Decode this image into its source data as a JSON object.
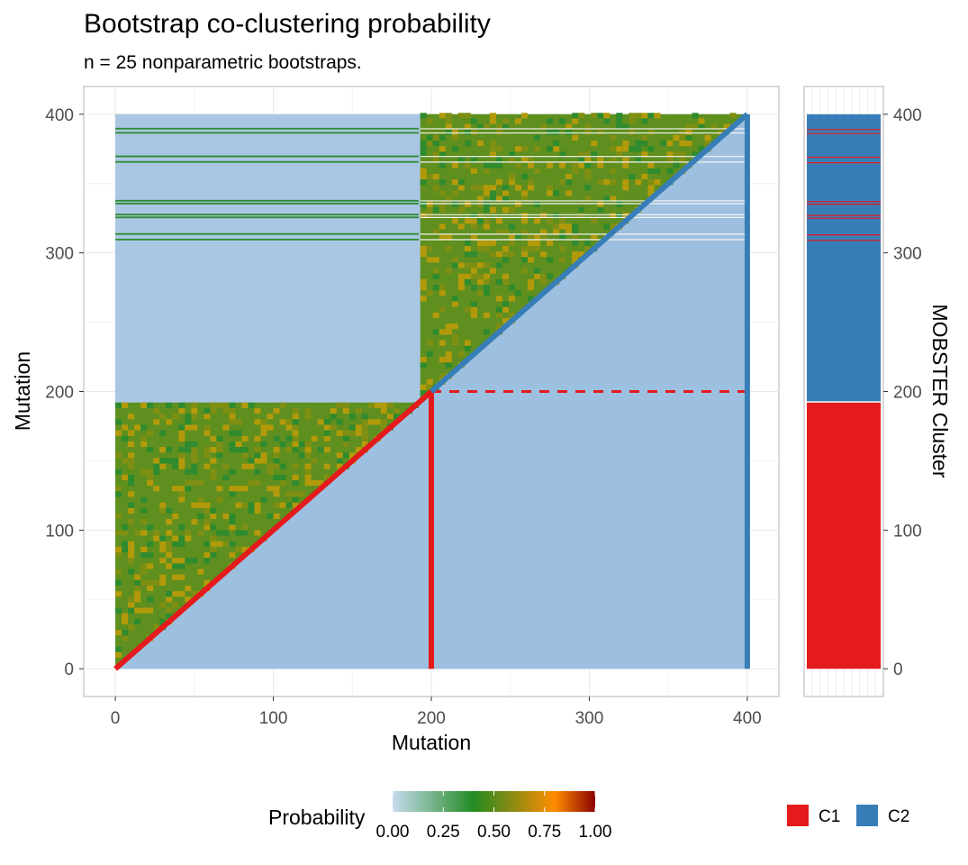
{
  "title": "Bootstrap co-clustering probability",
  "subtitle": "n = 25 nonparametric bootstraps.",
  "chart_data": [
    {
      "type": "heatmap",
      "title": "Bootstrap co-clustering probability",
      "subtitle": "n = 25 nonparametric bootstraps.",
      "xlabel": "Mutation",
      "ylabel": "Mutation",
      "xlim": [
        -20,
        420
      ],
      "ylim": [
        -20,
        420
      ],
      "x_ticks": [
        0,
        100,
        200,
        300,
        400
      ],
      "y_ticks": [
        0,
        100,
        200,
        300,
        400
      ],
      "x_tick_labels": [
        "0",
        "100",
        "200",
        "300",
        "400"
      ],
      "y_tick_labels": [
        "0",
        "100",
        "200",
        "300",
        "400"
      ],
      "grid": true,
      "n_mutations": 400,
      "blocks": [
        {
          "cluster": "C1",
          "from": 0,
          "to": 192,
          "mean_probability": 0.45
        },
        {
          "cluster": "C2",
          "from": 193,
          "to": 400,
          "mean_probability": 0.45
        }
      ],
      "off_block_probability": 0.0,
      "c1_mutations_within_c2_rows": [
        309,
        313,
        325,
        327,
        335,
        337,
        365,
        369,
        386,
        389
      ],
      "overlays": [
        {
          "cluster": "C1",
          "shape": "diagonal",
          "from": [
            0,
            0
          ],
          "to": [
            200,
            200
          ],
          "color": "#E41A1C"
        },
        {
          "cluster": "C1",
          "shape": "vertical",
          "x": 200,
          "from": 0,
          "to": 200,
          "color": "#E41A1C"
        },
        {
          "cluster": "C1",
          "shape": "horizontal-dashed",
          "y": 200,
          "from": 200,
          "to": 400,
          "color": "#E41A1C"
        },
        {
          "cluster": "C2",
          "shape": "diagonal",
          "from": [
            200,
            200
          ],
          "to": [
            400,
            400
          ],
          "color": "#377EB8"
        },
        {
          "cluster": "C2",
          "shape": "vertical",
          "x": 400,
          "from": 0,
          "to": 400,
          "color": "#377EB8"
        }
      ],
      "colorbar": {
        "title": "Probability",
        "ticks": [
          0.0,
          0.25,
          0.5,
          0.75,
          1.0
        ],
        "tick_labels": [
          "0.00",
          "0.25",
          "0.50",
          "0.75",
          "1.00"
        ],
        "colors": [
          "#c6dbef",
          "#228b22",
          "#ff8c00",
          "#8b0000"
        ],
        "legend_position": "bottom"
      }
    },
    {
      "type": "bar",
      "ylabel": "MOBSTER Cluster",
      "ylim": [
        -20,
        420
      ],
      "y_ticks": [
        0,
        100,
        200,
        300,
        400
      ],
      "y_tick_labels": [
        "0",
        "100",
        "200",
        "300",
        "400"
      ],
      "segments": [
        {
          "cluster": "C1",
          "from": 0,
          "to": 192
        },
        {
          "cluster": "C2",
          "from": 193,
          "to": 400
        }
      ],
      "c1_rows_within_c2": [
        309,
        313,
        325,
        327,
        335,
        337,
        365,
        369,
        386,
        389
      ],
      "legend": [
        {
          "label": "C1",
          "color": "#E41A1C"
        },
        {
          "label": "C2",
          "color": "#377EB8"
        }
      ],
      "legend_position": "bottom-right"
    }
  ]
}
